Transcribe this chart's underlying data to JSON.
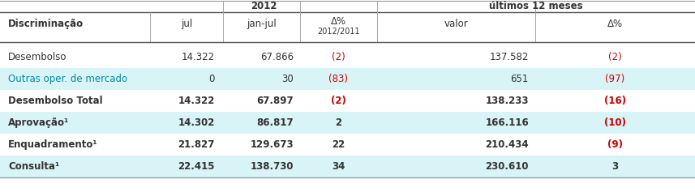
{
  "title_2012": "2012",
  "title_12m": "últimos 12 meses",
  "rows": [
    {
      "label": "Desembolso",
      "bold": false,
      "cyan": false,
      "label_cyan": false,
      "values": [
        "14.322",
        "67.866",
        "(2)",
        "137.582",
        "(2)"
      ],
      "red": [
        false,
        false,
        true,
        false,
        true
      ]
    },
    {
      "label": "Outras oper. de mercado",
      "bold": false,
      "cyan": true,
      "label_cyan": true,
      "values": [
        "0",
        "30",
        "(83)",
        "651",
        "(97)"
      ],
      "red": [
        false,
        false,
        true,
        false,
        true
      ]
    },
    {
      "label": "Desembolso Total",
      "bold": true,
      "cyan": false,
      "label_cyan": false,
      "values": [
        "14.322",
        "67.897",
        "(2)",
        "138.233",
        "(16)"
      ],
      "red": [
        false,
        false,
        true,
        false,
        true
      ]
    },
    {
      "label": "Aprovação¹",
      "bold": true,
      "cyan": true,
      "label_cyan": false,
      "values": [
        "14.302",
        "86.817",
        "2",
        "166.116",
        "(10)"
      ],
      "red": [
        false,
        false,
        false,
        false,
        true
      ]
    },
    {
      "label": "Enquadramento¹",
      "bold": true,
      "cyan": false,
      "label_cyan": false,
      "values": [
        "21.827",
        "129.673",
        "22",
        "210.434",
        "(9)"
      ],
      "red": [
        false,
        false,
        false,
        false,
        true
      ]
    },
    {
      "label": "Consulta¹",
      "bold": true,
      "cyan": true,
      "label_cyan": false,
      "values": [
        "22.415",
        "138.730",
        "34",
        "230.610",
        "3"
      ],
      "red": [
        false,
        false,
        false,
        false,
        false
      ]
    }
  ],
  "bg_color": "#ffffff",
  "cyan_color": "#d9f4f7",
  "text_color": "#333333",
  "red_color": "#cc0000",
  "cyan_label_color": "#008b9e",
  "border_color": "#999999",
  "header_border_color": "#555555"
}
